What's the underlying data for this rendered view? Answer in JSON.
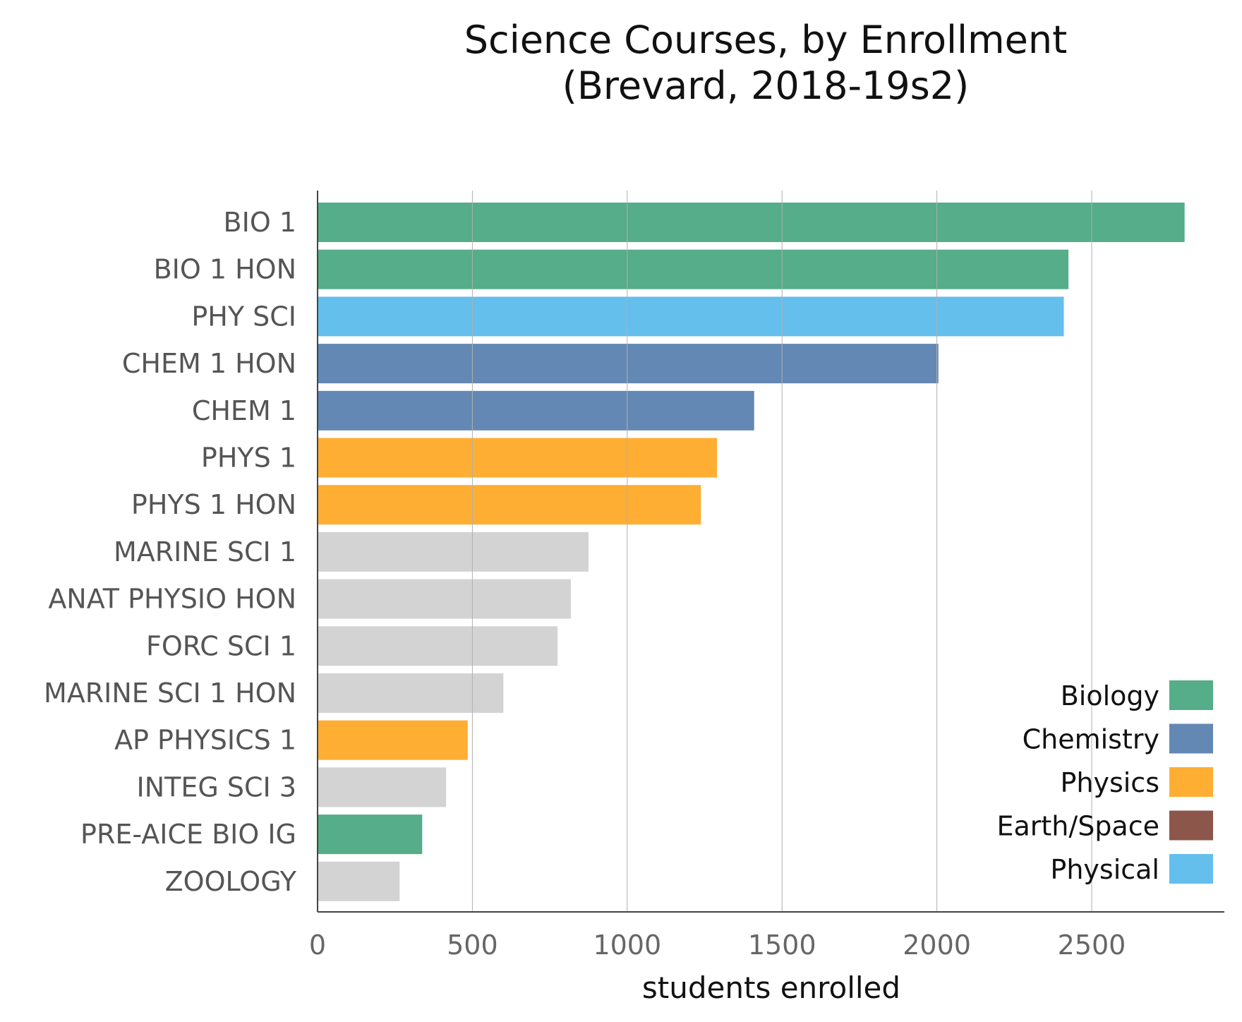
{
  "chart_data": {
    "type": "bar",
    "orientation": "horizontal",
    "title_line1": "Science Courses, by Enrollment",
    "title_line2": "(Brevard, 2018-19s2)",
    "xlabel": "students enrolled",
    "ylabel": "",
    "xlim": [
      0,
      2930
    ],
    "xticks": [
      0,
      500,
      1000,
      1500,
      2000,
      2500
    ],
    "grid": "vertical",
    "legend_position": "bottom-right",
    "colors": {
      "Biology": "#55ad89",
      "Chemistry": "#6388b4",
      "Physics": "#ffae34",
      "Earth/Space": "#8c564b",
      "Physical": "#64bfec",
      "Other": "#d3d3d3"
    },
    "legend": [
      "Biology",
      "Chemistry",
      "Physics",
      "Earth/Space",
      "Physical"
    ],
    "categories": [
      "BIO 1",
      "BIO 1 HON",
      "PHY SCI",
      "CHEM 1 HON",
      "CHEM 1",
      "PHYS 1",
      "PHYS 1 HON",
      "MARINE SCI 1",
      "ANAT PHYSIO HON",
      "FORC SCI 1",
      "MARINE SCI 1 HON",
      "AP PHYSICS 1",
      "INTEG SCI 3",
      "PRE-AICE BIO IG",
      "ZOOLOGY"
    ],
    "values": [
      2800,
      2425,
      2410,
      2005,
      1410,
      1290,
      1238,
      875,
      818,
      775,
      600,
      485,
      415,
      338,
      265
    ],
    "groups": [
      "Biology",
      "Biology",
      "Physical",
      "Chemistry",
      "Chemistry",
      "Physics",
      "Physics",
      "Other",
      "Other",
      "Other",
      "Other",
      "Physics",
      "Other",
      "Biology",
      "Other"
    ]
  }
}
